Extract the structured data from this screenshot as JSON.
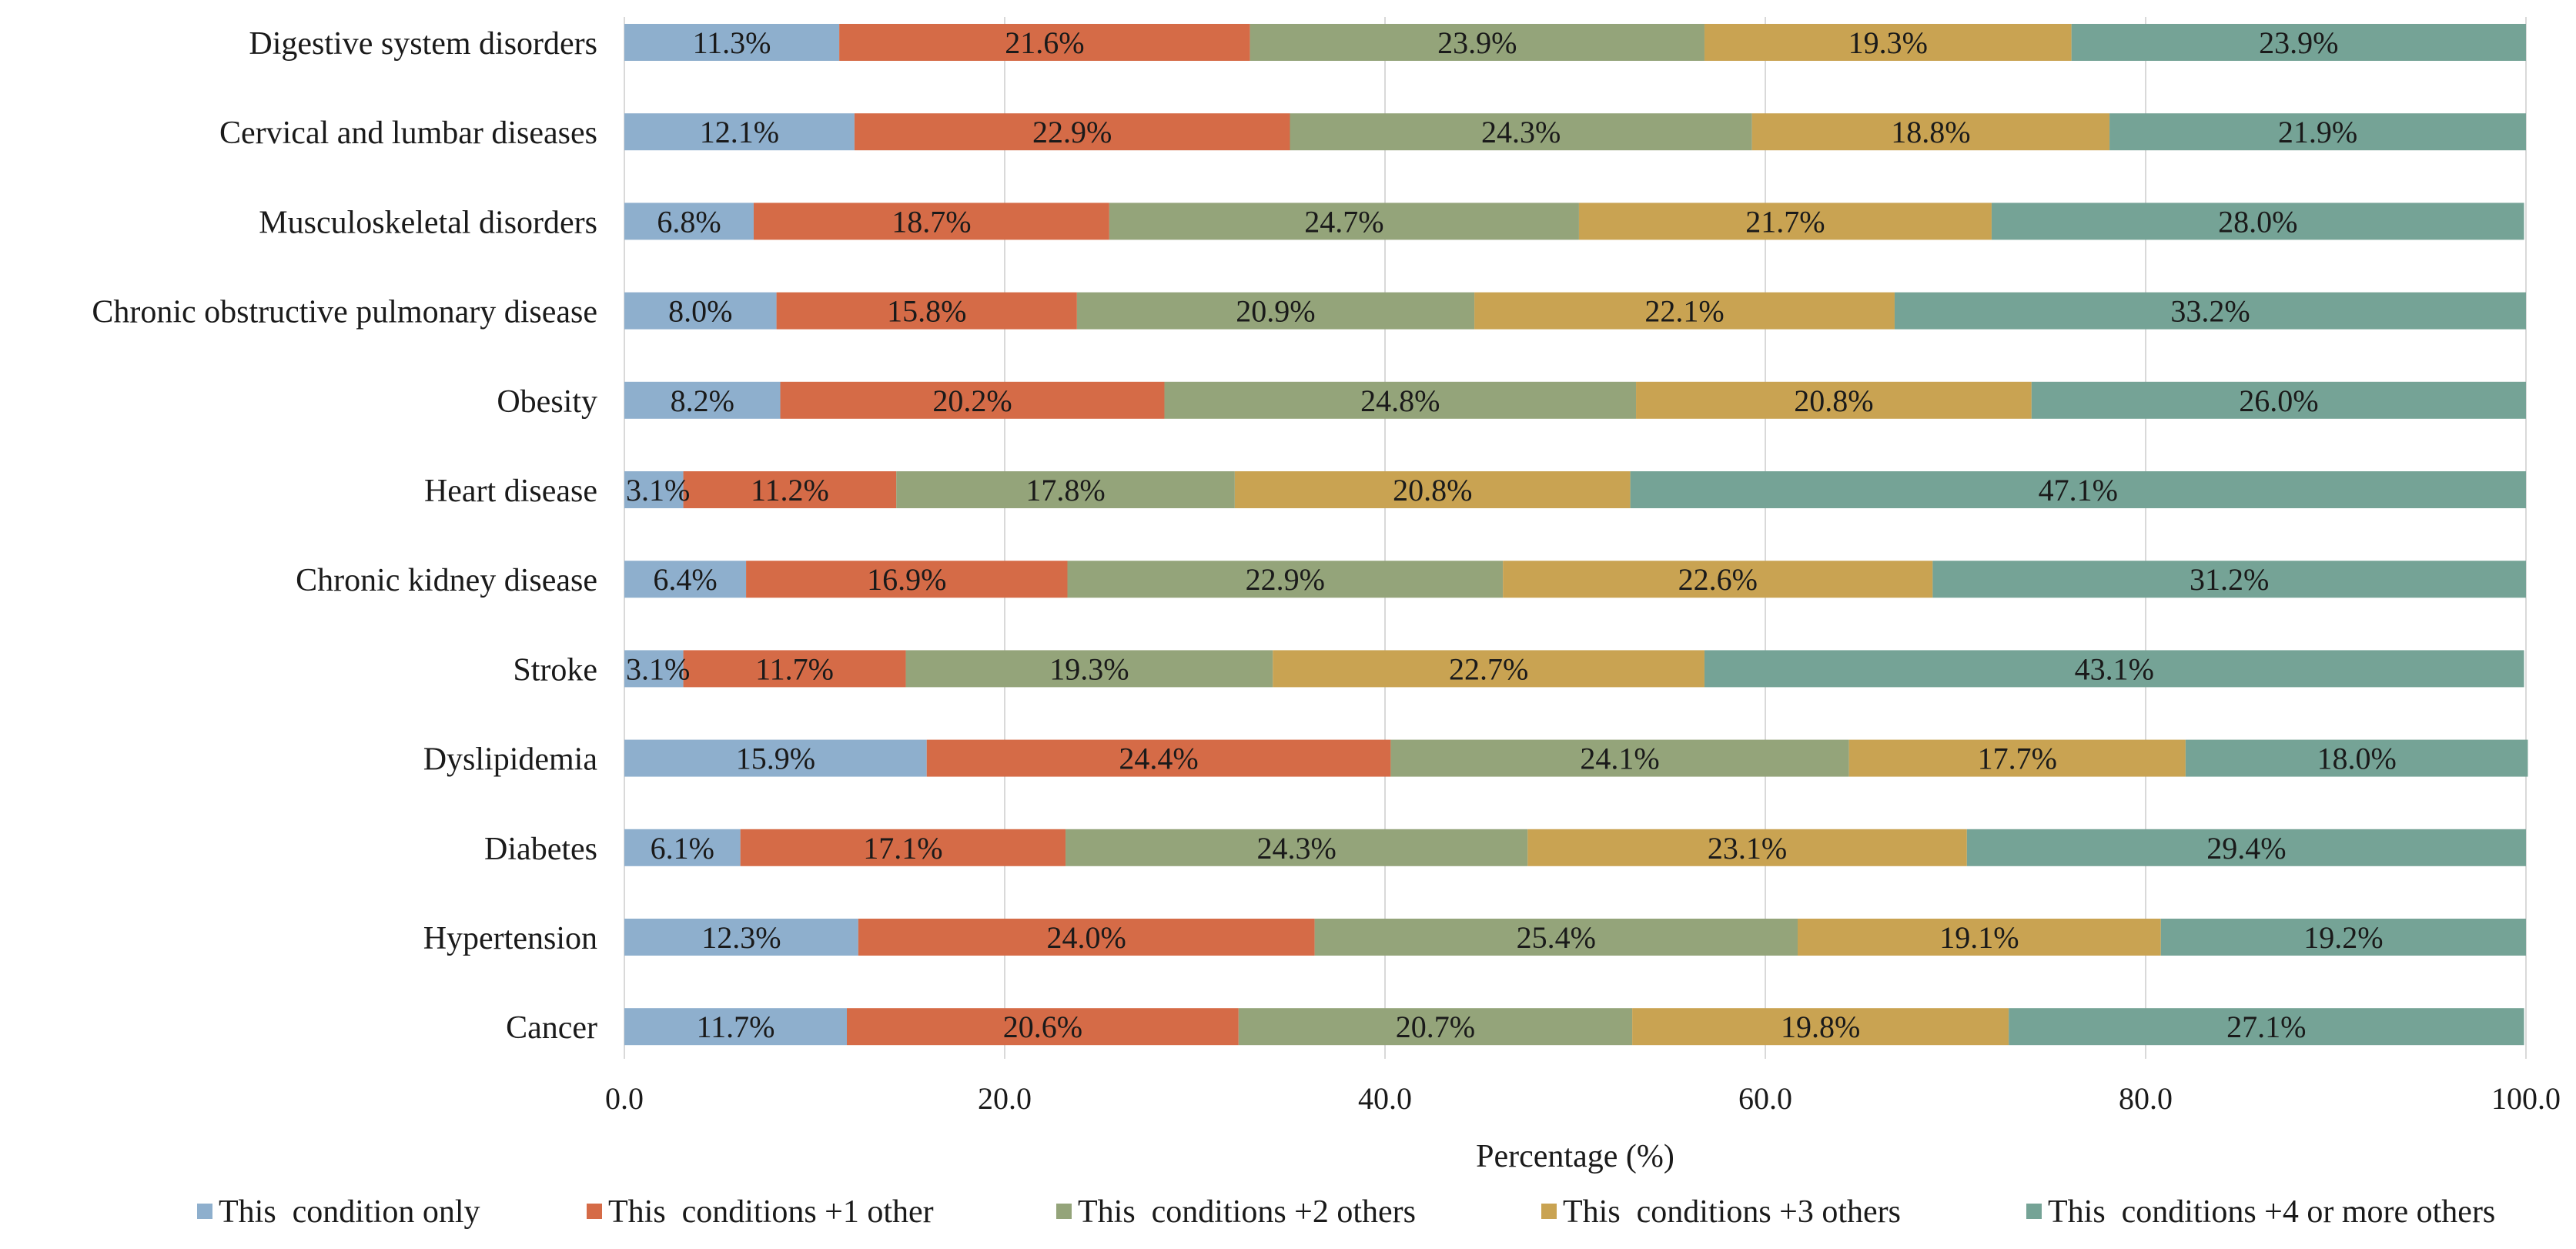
{
  "chart_data": {
    "type": "bar",
    "orientation": "horizontal",
    "stacked": true,
    "categories": [
      "Digestive system disorders",
      "Cervical and lumbar diseases",
      "Musculoskeletal disorders",
      "Chronic obstructive pulmonary disease",
      "Obesity",
      "Heart disease",
      "Chronic kidney disease",
      "Stroke",
      "Dyslipidemia",
      "Diabetes",
      "Hypertension",
      "Cancer"
    ],
    "series": [
      {
        "name": "This  condition only",
        "color": "#8EAFCD",
        "values": [
          11.3,
          12.1,
          6.8,
          8.0,
          8.2,
          3.1,
          6.4,
          3.1,
          15.9,
          6.1,
          12.3,
          11.7
        ]
      },
      {
        "name": "This  conditions +1 other",
        "color": "#D56B47",
        "values": [
          21.6,
          22.9,
          18.7,
          15.8,
          20.2,
          11.2,
          16.9,
          11.7,
          24.4,
          17.1,
          24.0,
          20.6
        ]
      },
      {
        "name": "This  conditions +2 others",
        "color": "#94A47A",
        "values": [
          23.9,
          24.3,
          24.7,
          20.9,
          24.8,
          17.8,
          22.9,
          19.3,
          24.1,
          24.3,
          25.4,
          20.7
        ]
      },
      {
        "name": "This  conditions +3 others",
        "color": "#C9A352",
        "values": [
          19.3,
          18.8,
          21.7,
          22.1,
          20.8,
          20.8,
          22.6,
          22.7,
          17.7,
          23.1,
          19.1,
          19.8
        ]
      },
      {
        "name": "This  conditions +4 or more others",
        "color": "#75A396",
        "values": [
          23.9,
          21.9,
          28.0,
          33.2,
          26.0,
          47.1,
          31.2,
          43.1,
          18.0,
          29.4,
          19.2,
          27.1
        ]
      }
    ],
    "xlabel": "Percentage (%)",
    "xlim": [
      0,
      100
    ],
    "xticks": [
      "0.0",
      "20.0",
      "40.0",
      "60.0",
      "80.0",
      "100.0"
    ],
    "xtick_values": [
      0,
      20,
      40,
      60,
      80,
      100
    ],
    "grid": "vertical",
    "legend_position": "bottom",
    "value_suffix": "%"
  }
}
